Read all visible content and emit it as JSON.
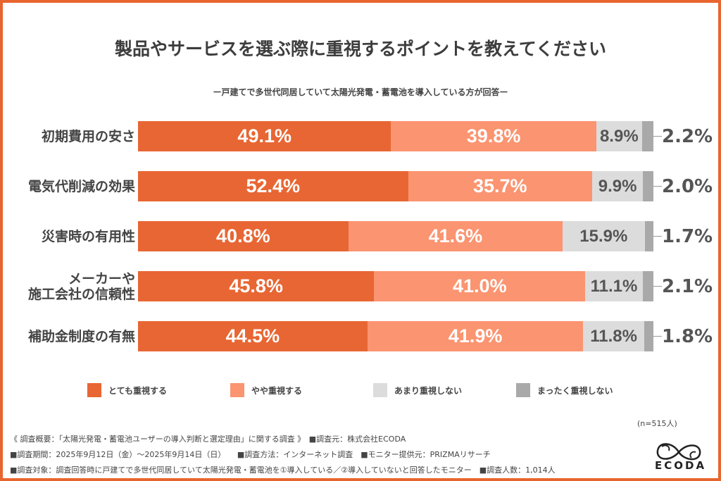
{
  "chart_data": {
    "type": "bar",
    "orientation": "horizontal-stacked-100",
    "title": "製品やサービスを選ぶ際に重視するポイントを教えてください",
    "subtitle": "ー戸建てで多世代同居していて太陽光発電・蓄電池を導入している方が回答ー",
    "categories": [
      "初期費用の安さ",
      "電気代削減の効果",
      "災害時の有用性",
      "メーカーや\n施工会社の信頼性",
      "補助金制度の有無"
    ],
    "series": [
      {
        "name": "とても重視する",
        "color": "#e86633",
        "values": [
          49.1,
          52.4,
          40.8,
          45.8,
          44.5
        ]
      },
      {
        "name": "やや重視する",
        "color": "#fb9470",
        "values": [
          39.8,
          35.7,
          41.6,
          41.0,
          41.9
        ]
      },
      {
        "name": "あまり重視しない",
        "color": "#dcdcdc",
        "values": [
          8.9,
          9.9,
          15.9,
          11.1,
          11.8
        ]
      },
      {
        "name": "まったく重視しない",
        "color": "#a9a9a9",
        "values": [
          2.2,
          2.0,
          1.7,
          2.1,
          1.8
        ]
      }
    ],
    "legend_position": "bottom",
    "grid": false
  },
  "note_n": "(n=515人)",
  "footer": [
    "《 調査概要：「太陽光発電・蓄電池ユーザーの導入判断と選定理由」に関する調査 》　■調査元：株式会社ECODA",
    "■調査期間：2025年9月12日（金）〜2025年9月14日（日）　　■調査方法：インターネット調査　■モニター提供元：PRIZMAリサーチ",
    "■調査対象：調査回答時に戸建てで多世代同居していて太陽光発電・蓄電池を①導入している／②導入していないと回答したモニター　■調査人数：1,014人"
  ],
  "logo": "ECODA",
  "colors": {
    "frame": "#e8652f"
  }
}
